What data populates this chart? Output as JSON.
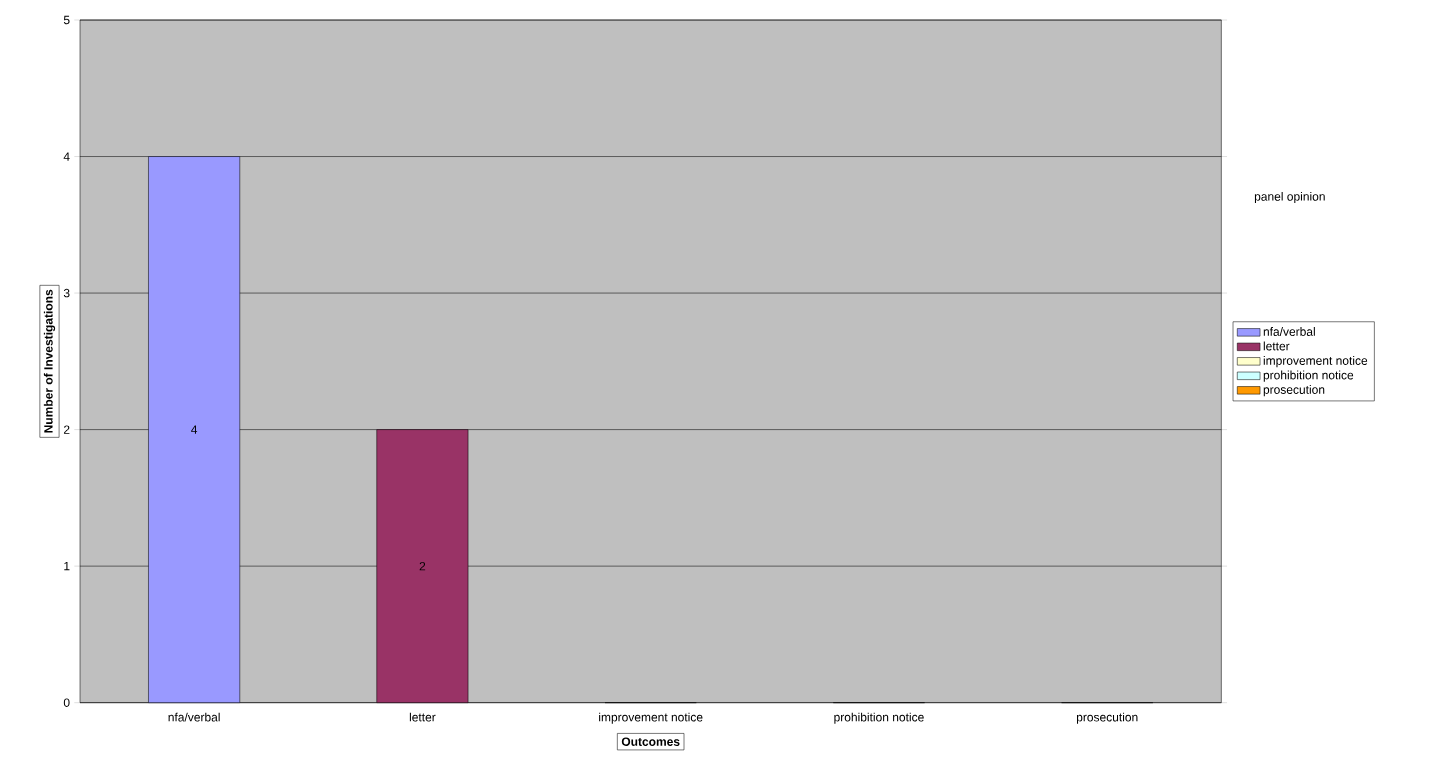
{
  "chart_data": {
    "type": "bar",
    "categories": [
      "nfa/verbal",
      "letter",
      "improvement notice",
      "prohibition notice",
      "prosecution"
    ],
    "series": [
      {
        "name": "nfa/verbal",
        "color": "#9999ff",
        "values": [
          4,
          null,
          null,
          null,
          null
        ],
        "value_labels": [
          "4",
          null,
          null,
          null,
          null
        ]
      },
      {
        "name": "letter",
        "color": "#993366",
        "values": [
          null,
          2,
          null,
          null,
          null
        ],
        "value_labels": [
          null,
          "2",
          null,
          null,
          null
        ]
      },
      {
        "name": "improvement notice",
        "color": "#ffffcc",
        "values": [
          null,
          null,
          0,
          null,
          null
        ]
      },
      {
        "name": "prohibition notice",
        "color": "#ccffff",
        "values": [
          null,
          null,
          null,
          0,
          null
        ]
      },
      {
        "name": "prosecution",
        "color": "#ff9900",
        "values": [
          null,
          null,
          null,
          null,
          0
        ]
      }
    ],
    "xlabel": "Outcomes",
    "ylabel": "Number of Investigations",
    "legend_title": "panel opinion",
    "ylim": [
      0,
      5
    ],
    "yticks": [
      0,
      1,
      2,
      3,
      4,
      5
    ],
    "grid": "y",
    "legend": "right"
  }
}
